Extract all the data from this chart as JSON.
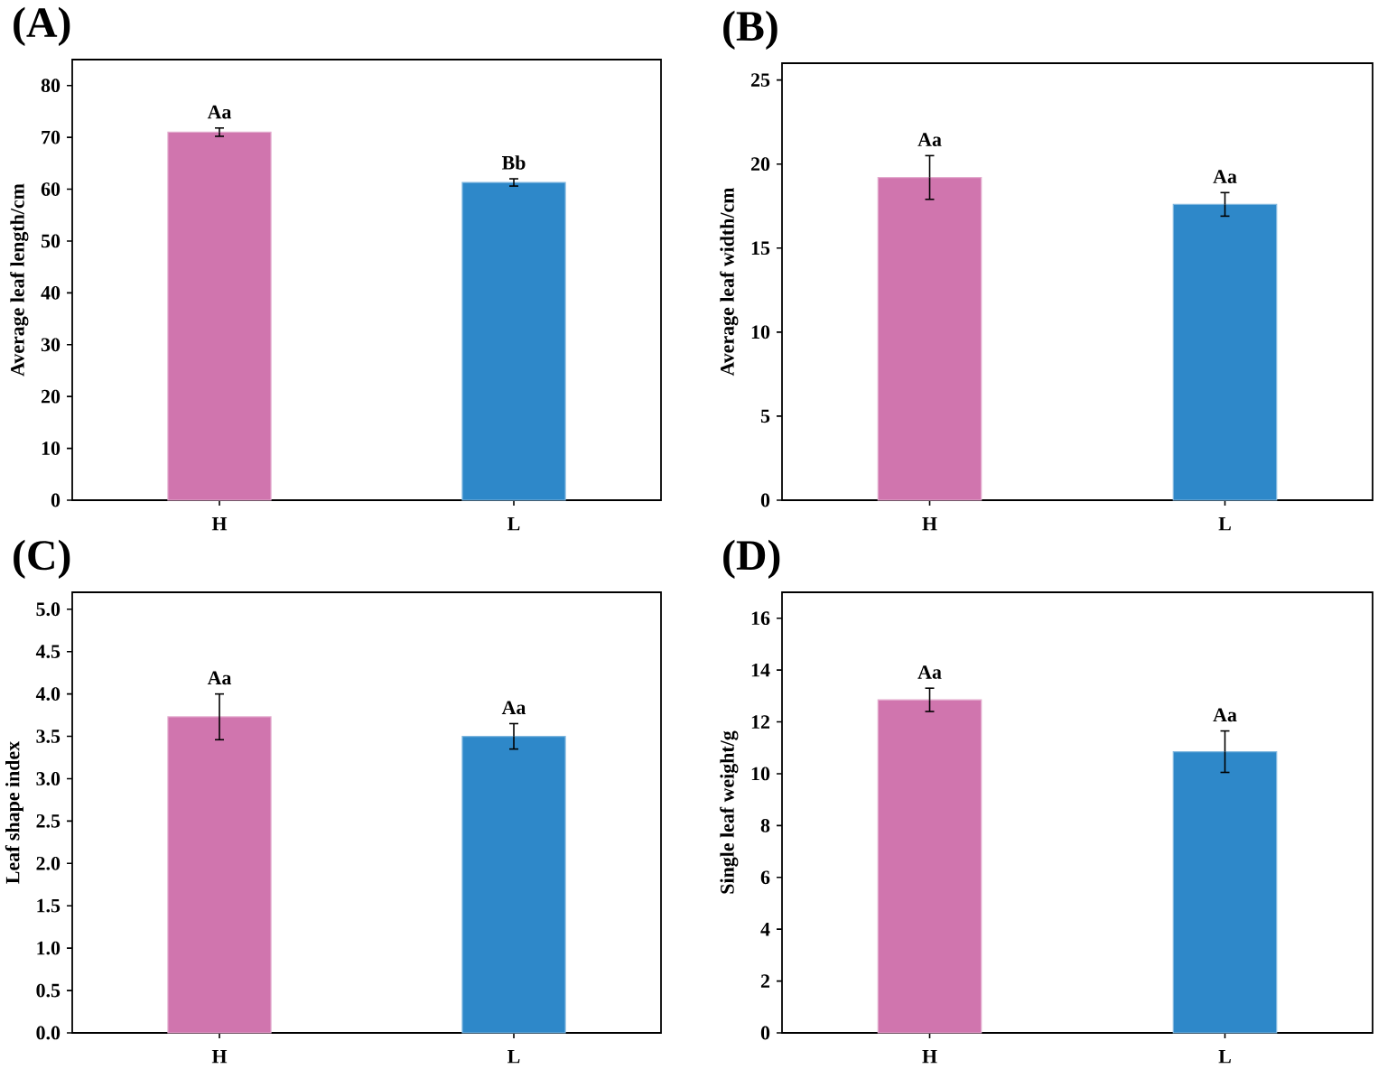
{
  "chart_data": [
    {
      "type": "bar",
      "title": "(A)",
      "ylabel": "Average leaf length/cm",
      "categories": [
        "H",
        "L"
      ],
      "values": [
        71.0,
        61.3
      ],
      "colors": [
        "#d075ae",
        "#2e88c9"
      ],
      "errors": [
        0.8,
        0.7
      ],
      "ylim": [
        0,
        85
      ],
      "yticks": [
        0,
        10,
        20,
        30,
        40,
        50,
        60,
        70,
        80
      ],
      "annotations": [
        {
          "text": "Aa",
          "x": "H",
          "y": 71.8
        },
        {
          "text": "Bb",
          "x": "L",
          "y": 62.0
        }
      ]
    },
    {
      "type": "bar",
      "title": "(B)",
      "ylabel": "Average leaf width/cm",
      "categories": [
        "H",
        "L"
      ],
      "values": [
        19.2,
        17.6
      ],
      "colors": [
        "#d075ae",
        "#2e88c9"
      ],
      "errors": [
        1.3,
        0.7
      ],
      "ylim": [
        0,
        26
      ],
      "yticks": [
        0,
        5,
        10,
        15,
        20,
        25
      ],
      "annotations": [
        {
          "text": "Aa",
          "x": "H",
          "y": 20.5
        },
        {
          "text": "Aa",
          "x": "L",
          "y": 18.3
        }
      ]
    },
    {
      "type": "bar",
      "title": "(C)",
      "ylabel": "Leaf shape index",
      "categories": [
        "H",
        "L"
      ],
      "values": [
        3.73,
        3.5
      ],
      "colors": [
        "#d075ae",
        "#2e88c9"
      ],
      "errors": [
        0.27,
        0.15
      ],
      "ylim": [
        0,
        5.2
      ],
      "yticks": [
        {
          "value": 0,
          "label": "0.0"
        },
        {
          "value": 0.5,
          "label": "0.5"
        },
        {
          "value": 1,
          "label": "1.0"
        },
        {
          "value": 1.5,
          "label": "1.5"
        },
        {
          "value": 2,
          "label": "2.0"
        },
        {
          "value": 2.5,
          "label": "2.5"
        },
        {
          "value": 3,
          "label": "3.0"
        },
        {
          "value": 3.5,
          "label": "3.5"
        },
        {
          "value": 4,
          "label": "4.0"
        },
        {
          "value": 4.5,
          "label": "4.5"
        },
        {
          "value": 5,
          "label": "5.0"
        }
      ],
      "annotations": [
        {
          "text": "Aa",
          "x": "H",
          "y": 4.0
        },
        {
          "text": "Aa",
          "x": "L",
          "y": 3.65
        }
      ]
    },
    {
      "type": "bar",
      "title": "(D)",
      "ylabel": "Single leaf weight/g",
      "categories": [
        "H",
        "L"
      ],
      "values": [
        12.85,
        10.85
      ],
      "colors": [
        "#d075ae",
        "#2e88c9"
      ],
      "errors": [
        0.45,
        0.8
      ],
      "ylim": [
        0,
        17
      ],
      "yticks": [
        0,
        2,
        4,
        6,
        8,
        10,
        12,
        14,
        16
      ],
      "annotations": [
        {
          "text": "Aa",
          "x": "H",
          "y": 13.3
        },
        {
          "text": "Aa",
          "x": "L",
          "y": 11.65
        }
      ]
    }
  ]
}
